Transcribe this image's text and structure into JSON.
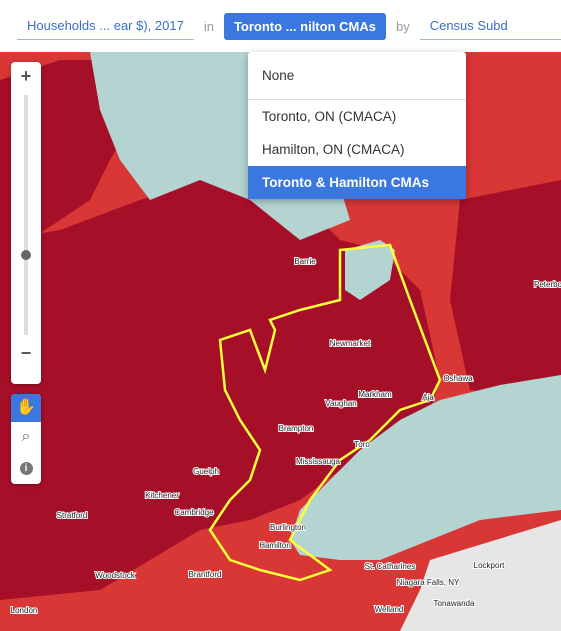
{
  "toolbar": {
    "variable": "Households ... ear $), 2017",
    "in": "in",
    "region": "Toronto ... nilton CMAs",
    "by": "by",
    "level": "Census Subd"
  },
  "dropdown": {
    "options": [
      "None",
      "Toronto, ON (CMACA)",
      "Hamilton, ON (CMACA)",
      "Toronto & Hamilton CMAs"
    ],
    "selected": 3
  },
  "zoom": {
    "in": "+",
    "out": "−",
    "info": "i"
  },
  "places": [
    "Barrie",
    "Peterbo",
    "Newmarket",
    "Oshawa",
    "Markham",
    "Aja",
    "Vaughan",
    "Brampton",
    "Toro",
    "Mississauga",
    "Guelph",
    "Kitchener",
    "Cambridge",
    "Stratford",
    "Burlington",
    "Hamilton",
    "Woodstock",
    "Brantford",
    "St. Catharines",
    "Lockport",
    "Niagara Falls, NY",
    "Tonawanda",
    "Welland",
    "London"
  ]
}
